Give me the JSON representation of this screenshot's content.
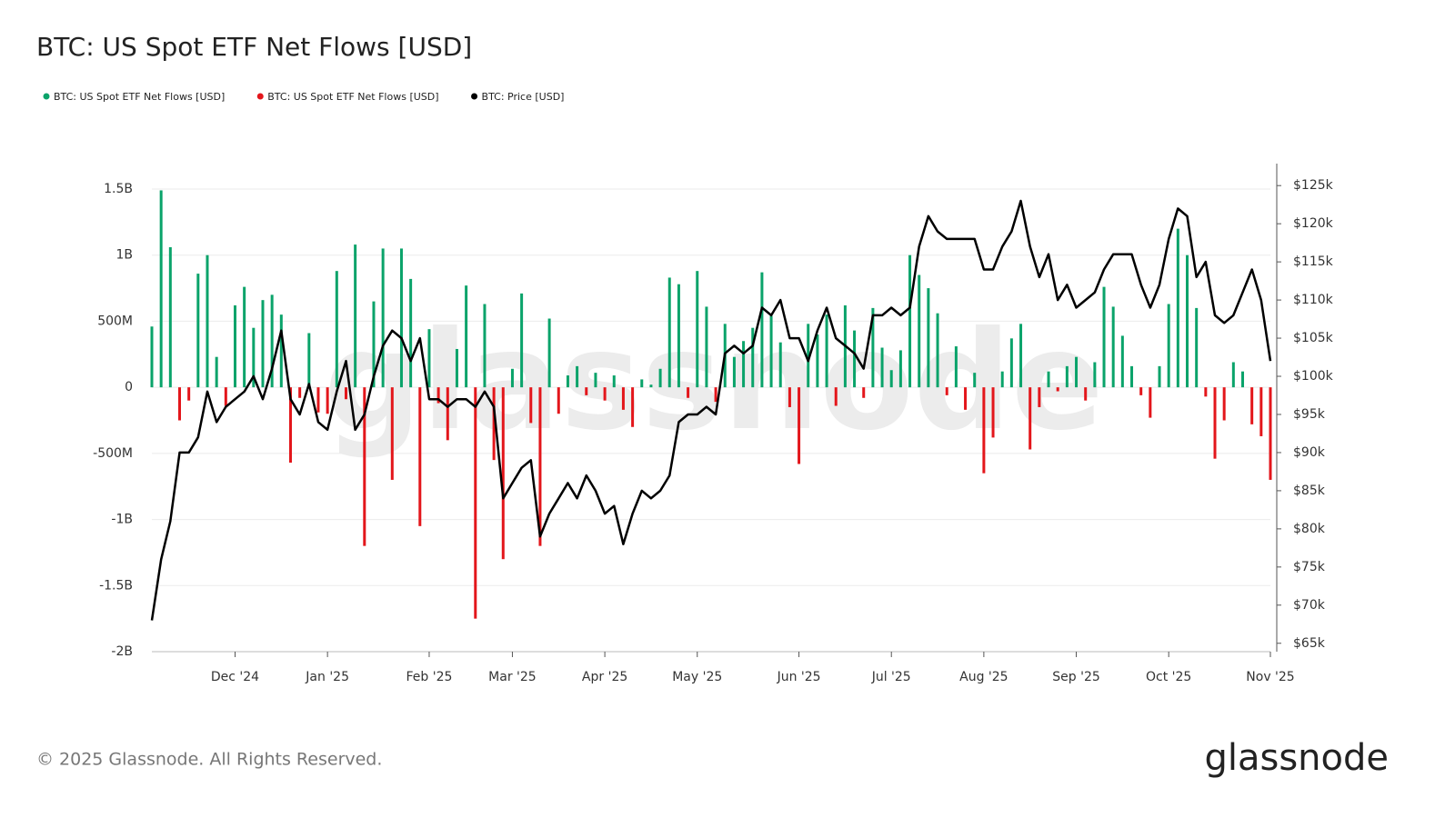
{
  "chart_data": {
    "type": "bar-line",
    "title": "BTC: US Spot ETF Net Flows [USD]",
    "categories": [
      null,
      null,
      null,
      null,
      null,
      null,
      null,
      null,
      null,
      "Dec '24",
      null,
      null,
      null,
      null,
      null,
      null,
      null,
      null,
      null,
      "Jan '25",
      null,
      null,
      null,
      null,
      null,
      null,
      null,
      null,
      null,
      null,
      "Feb '25",
      null,
      null,
      null,
      null,
      null,
      null,
      null,
      null,
      "Mar '25",
      null,
      null,
      null,
      null,
      null,
      null,
      null,
      null,
      null,
      "Apr '25",
      null,
      null,
      null,
      null,
      null,
      null,
      null,
      null,
      null,
      "May '25",
      null,
      null,
      null,
      null,
      null,
      null,
      null,
      null,
      null,
      null,
      "Jun '25",
      null,
      null,
      null,
      null,
      null,
      null,
      null,
      null,
      null,
      "Jul '25",
      null,
      null,
      null,
      null,
      null,
      null,
      null,
      null,
      null,
      "Aug '25",
      null,
      null,
      null,
      null,
      null,
      null,
      null,
      null,
      null,
      "Sep '25",
      null,
      null,
      null,
      null,
      null,
      null,
      null,
      null,
      null,
      "Oct '25",
      null,
      null,
      null,
      null,
      null,
      null,
      null,
      null,
      null,
      null,
      "Nov '25"
    ],
    "series": [
      {
        "name": "BTC: US Spot ETF Net Flows [USD]",
        "color": "#0aa36a",
        "type": "bar",
        "values": [
          460000000,
          1490000000,
          1060000000,
          null,
          null,
          860000000,
          1000000000,
          230000000,
          null,
          620000000,
          760000000,
          450000000,
          660000000,
          700000000,
          550000000,
          null,
          null,
          410000000,
          null,
          null,
          880000000,
          null,
          1080000000,
          null,
          650000000,
          1050000000,
          null,
          1050000000,
          820000000,
          null,
          440000000,
          null,
          null,
          290000000,
          770000000,
          null,
          630000000,
          null,
          null,
          140000000,
          710000000,
          null,
          null,
          520000000,
          null,
          90000000,
          160000000,
          null,
          110000000,
          null,
          90000000,
          null,
          null,
          60000000,
          20000000,
          140000000,
          830000000,
          780000000,
          null,
          880000000,
          610000000,
          null,
          480000000,
          230000000,
          350000000,
          450000000,
          870000000,
          540000000,
          340000000,
          null,
          null,
          480000000,
          400000000,
          550000000,
          null,
          620000000,
          430000000,
          null,
          600000000,
          300000000,
          130000000,
          280000000,
          1000000000,
          850000000,
          750000000,
          560000000,
          null,
          310000000,
          null,
          110000000,
          null,
          null,
          120000000,
          370000000,
          480000000,
          null,
          null,
          120000000,
          null,
          160000000,
          230000000,
          null,
          190000000,
          760000000,
          610000000,
          390000000,
          160000000,
          null,
          null,
          160000000,
          630000000,
          1200000000,
          1000000000,
          600000000,
          null,
          null,
          null,
          190000000,
          120000000,
          null,
          null,
          null
        ]
      },
      {
        "name": "BTC: US Spot ETF Net Flows [USD]",
        "color": "#e3161b",
        "type": "bar",
        "values": [
          null,
          null,
          null,
          -250000000,
          -100000000,
          null,
          null,
          null,
          -140000000,
          null,
          null,
          null,
          null,
          null,
          null,
          -570000000,
          -80000000,
          null,
          -190000000,
          -200000000,
          null,
          -90000000,
          null,
          -1200000000,
          null,
          null,
          -700000000,
          null,
          null,
          -1050000000,
          null,
          -120000000,
          -400000000,
          null,
          null,
          -1750000000,
          null,
          -550000000,
          -1300000000,
          null,
          null,
          -270000000,
          -1200000000,
          null,
          -200000000,
          null,
          null,
          -60000000,
          null,
          -100000000,
          null,
          -170000000,
          -300000000,
          null,
          null,
          null,
          null,
          null,
          -80000000,
          null,
          null,
          -110000000,
          null,
          null,
          null,
          null,
          null,
          null,
          null,
          -150000000,
          -580000000,
          null,
          null,
          null,
          -140000000,
          null,
          null,
          -80000000,
          null,
          null,
          null,
          null,
          null,
          null,
          null,
          null,
          -60000000,
          null,
          -170000000,
          null,
          -650000000,
          -380000000,
          null,
          null,
          null,
          -470000000,
          -150000000,
          null,
          -30000000,
          null,
          null,
          -100000000,
          null,
          null,
          null,
          null,
          null,
          -60000000,
          -230000000,
          null,
          null,
          null,
          null,
          null,
          -70000000,
          -540000000,
          -250000000,
          null,
          null,
          -280000000,
          -370000000,
          -700000000
        ]
      },
      {
        "name": "BTC: Price [USD]",
        "color": "#000000",
        "type": "line",
        "axis": "y2",
        "values": [
          68000,
          76000,
          81000,
          90000,
          90000,
          92000,
          98000,
          94000,
          96000,
          97000,
          98000,
          100000,
          97000,
          101000,
          106000,
          97000,
          95000,
          99000,
          94000,
          93000,
          98000,
          102000,
          93000,
          95000,
          100000,
          104000,
          106000,
          105000,
          102000,
          105000,
          97000,
          97000,
          96000,
          97000,
          97000,
          96000,
          98000,
          96000,
          84000,
          86000,
          88000,
          89000,
          79000,
          82000,
          84000,
          86000,
          84000,
          87000,
          85000,
          82000,
          83000,
          78000,
          82000,
          85000,
          84000,
          85000,
          87000,
          94000,
          95000,
          95000,
          96000,
          95000,
          103000,
          104000,
          103000,
          104000,
          109000,
          108000,
          110000,
          105000,
          105000,
          102000,
          106000,
          109000,
          105000,
          104000,
          103000,
          101000,
          108000,
          108000,
          109000,
          108000,
          109000,
          117000,
          121000,
          119000,
          118000,
          118000,
          118000,
          118000,
          114000,
          114000,
          117000,
          119000,
          123000,
          117000,
          113000,
          116000,
          110000,
          112000,
          109000,
          110000,
          111000,
          114000,
          116000,
          116000,
          116000,
          112000,
          109000,
          112000,
          118000,
          122000,
          121000,
          113000,
          115000,
          108000,
          107000,
          108000,
          111000,
          114000,
          110000,
          102000
        ]
      }
    ],
    "ylim": [
      -2000000000,
      1500000000
    ],
    "yticks": [
      {
        "value": 1500000000,
        "label": "1.5B"
      },
      {
        "value": 1000000000,
        "label": "1B"
      },
      {
        "value": 500000000,
        "label": "500M"
      },
      0,
      {
        "value": -500000000,
        "label": "-500M"
      },
      {
        "value": -1000000000,
        "label": "-1B"
      },
      {
        "value": -1500000000,
        "label": "-1.5B"
      },
      {
        "value": -2000000000,
        "label": "-2B"
      }
    ],
    "y2lim": [
      63900,
      125500
    ],
    "y2ticks": [
      {
        "value": 125000,
        "label": "$125k"
      },
      {
        "value": 120000,
        "label": "$120k"
      },
      {
        "value": 115000,
        "label": "$115k"
      },
      {
        "value": 110000,
        "label": "$110k"
      },
      {
        "value": 105000,
        "label": "$105k"
      },
      {
        "value": 100000,
        "label": "$100k"
      },
      {
        "value": 95000,
        "label": "$95k"
      },
      {
        "value": 90000,
        "label": "$90k"
      },
      {
        "value": 85000,
        "label": "$85k"
      },
      {
        "value": 80000,
        "label": "$80k"
      },
      {
        "value": 75000,
        "label": "$75k"
      },
      {
        "value": 70000,
        "label": "$70k"
      },
      {
        "value": 65000,
        "label": "$65k"
      }
    ],
    "grid": true
  },
  "watermark": "glassnode",
  "footer": "© 2025 Glassnode. All Rights Reserved.",
  "logo": "glassnode"
}
